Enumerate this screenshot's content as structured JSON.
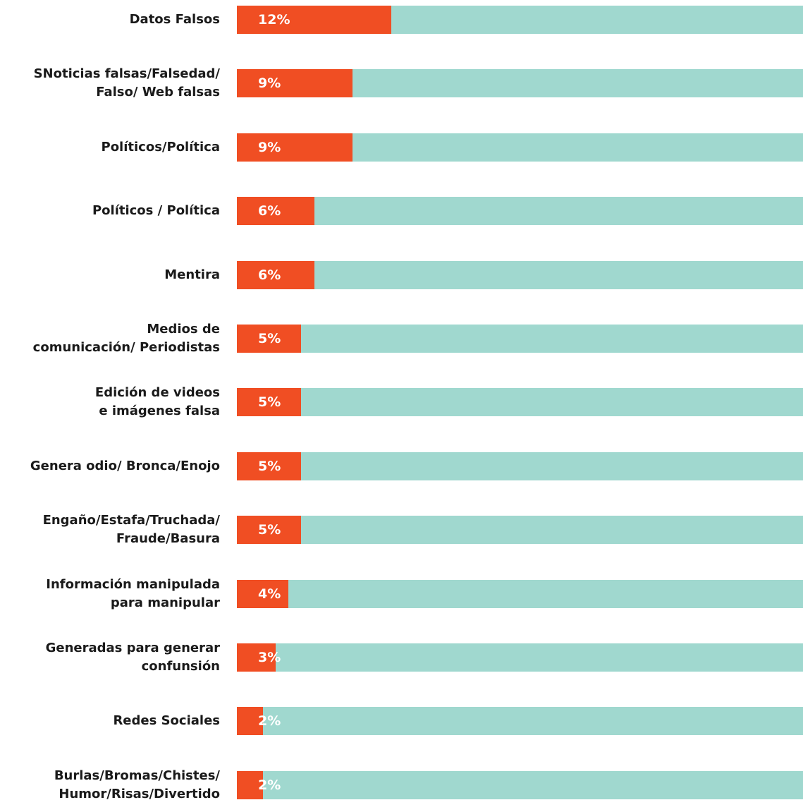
{
  "chart_data": {
    "type": "bar",
    "orientation": "horizontal",
    "categories": [
      "Datos Falsos",
      "SNoticias falsas/Falsedad/\nFalso/ Web falsas",
      "Políticos/Política",
      "Políticos / Política",
      "Mentira",
      "Medios de\ncomunicación/ Periodistas",
      "Edición de videos\ne imágenes falsa",
      "Genera odio/ Bronca/Enojo",
      "Engaño/Estafa/Truchada/\nFraude/Basura",
      "Información manipulada\npara manipular",
      "Generadas para generar\nconfunsión",
      "Redes Sociales",
      "Burlas/Bromas/Chistes/\nHumor/Risas/Divertido"
    ],
    "values": [
      12,
      9,
      9,
      6,
      6,
      5,
      5,
      5,
      5,
      4,
      3,
      2,
      2
    ],
    "value_labels": [
      "12%",
      "9%",
      "9%",
      "6%",
      "6%",
      "5%",
      "5%",
      "5%",
      "5%",
      "4%",
      "3%",
      "2%",
      "2%"
    ],
    "color": "#f04e23",
    "track_color": "#a0d8cf",
    "xlim": [
      0,
      44
    ]
  }
}
